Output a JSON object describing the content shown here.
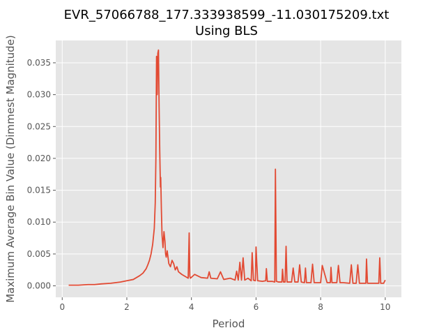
{
  "chart_data": {
    "type": "line",
    "title_line1": "EVR_57066788_177.333938599_-11.030175209.txt",
    "title_line2": "Using BLS",
    "xlabel": "Period",
    "ylabel": "Maximum Average Bin Value (Dimmest Magnitude)",
    "xlim": [
      -0.2,
      10.5
    ],
    "ylim": [
      -0.0018,
      0.0385
    ],
    "x_ticks": [
      0,
      2,
      4,
      6,
      8,
      10
    ],
    "x_tick_labels": [
      "0",
      "2",
      "4",
      "6",
      "8",
      "10"
    ],
    "y_ticks": [
      0.0,
      0.005,
      0.01,
      0.015,
      0.02,
      0.025,
      0.03,
      0.035
    ],
    "y_tick_labels": [
      "0.000",
      "0.005",
      "0.010",
      "0.015",
      "0.020",
      "0.025",
      "0.030",
      "0.035"
    ],
    "grid": true,
    "background": "#E5E5E5",
    "series": [
      {
        "color": "#E24A33",
        "x": [
          0.2,
          0.5,
          0.8,
          1.0,
          1.2,
          1.5,
          1.8,
          2.0,
          2.2,
          2.3,
          2.4,
          2.5,
          2.6,
          2.65,
          2.7,
          2.75,
          2.8,
          2.85,
          2.88,
          2.9,
          2.92,
          2.94,
          2.96,
          2.98,
          3.0,
          3.02,
          3.04,
          3.05,
          3.07,
          3.09,
          3.12,
          3.15,
          3.18,
          3.2,
          3.22,
          3.25,
          3.3,
          3.35,
          3.4,
          3.45,
          3.5,
          3.55,
          3.6,
          3.7,
          3.8,
          3.9,
          3.93,
          3.95,
          3.97,
          4.1,
          4.3,
          4.5,
          4.55,
          4.6,
          4.8,
          4.9,
          5.0,
          5.2,
          5.35,
          5.4,
          5.45,
          5.5,
          5.55,
          5.6,
          5.65,
          5.75,
          5.85,
          5.88,
          5.92,
          5.98,
          6.0,
          6.05,
          6.2,
          6.3,
          6.32,
          6.35,
          6.5,
          6.58,
          6.6,
          6.63,
          6.7,
          6.8,
          6.82,
          6.85,
          6.9,
          6.93,
          6.96,
          7.1,
          7.15,
          7.2,
          7.3,
          7.35,
          7.4,
          7.5,
          7.53,
          7.56,
          7.7,
          7.75,
          7.8,
          7.9,
          8.0,
          8.05,
          8.2,
          8.3,
          8.32,
          8.35,
          8.5,
          8.55,
          8.6,
          8.7,
          8.9,
          8.95,
          9.0,
          9.1,
          9.15,
          9.2,
          9.4,
          9.42,
          9.45,
          9.6,
          9.8,
          9.83,
          9.86,
          9.95,
          10.0
        ],
        "y": [
          0.0001,
          0.0001,
          0.0002,
          0.0002,
          0.0003,
          0.0004,
          0.0006,
          0.0008,
          0.001,
          0.0013,
          0.0016,
          0.002,
          0.0027,
          0.0033,
          0.004,
          0.005,
          0.0065,
          0.009,
          0.013,
          0.02,
          0.036,
          0.03,
          0.0365,
          0.037,
          0.028,
          0.021,
          0.0155,
          0.017,
          0.012,
          0.008,
          0.006,
          0.0085,
          0.007,
          0.005,
          0.0045,
          0.0055,
          0.0035,
          0.003,
          0.004,
          0.0035,
          0.0025,
          0.003,
          0.0022,
          0.0018,
          0.0015,
          0.0012,
          0.0083,
          0.0015,
          0.0012,
          0.0018,
          0.0013,
          0.0012,
          0.0022,
          0.0012,
          0.0011,
          0.0022,
          0.001,
          0.0012,
          0.0009,
          0.0023,
          0.0009,
          0.0037,
          0.0009,
          0.0044,
          0.0009,
          0.0012,
          0.0008,
          0.0052,
          0.0009,
          0.0008,
          0.0061,
          0.0008,
          0.0007,
          0.0008,
          0.0027,
          0.0007,
          0.0007,
          0.0006,
          0.0183,
          0.0007,
          0.0006,
          0.0006,
          0.0026,
          0.0006,
          0.0006,
          0.0062,
          0.0006,
          0.0006,
          0.0028,
          0.0006,
          0.0006,
          0.0033,
          0.0006,
          0.0005,
          0.0028,
          0.0005,
          0.0005,
          0.0034,
          0.0005,
          0.0005,
          0.0005,
          0.0032,
          0.0005,
          0.0005,
          0.0029,
          0.0005,
          0.0005,
          0.0032,
          0.0005,
          0.0005,
          0.0004,
          0.0033,
          0.0004,
          0.0004,
          0.0033,
          0.0004,
          0.0004,
          0.0042,
          0.0004,
          0.0004,
          0.0004,
          0.0044,
          0.0004,
          0.0004,
          0.0009
        ]
      }
    ]
  }
}
